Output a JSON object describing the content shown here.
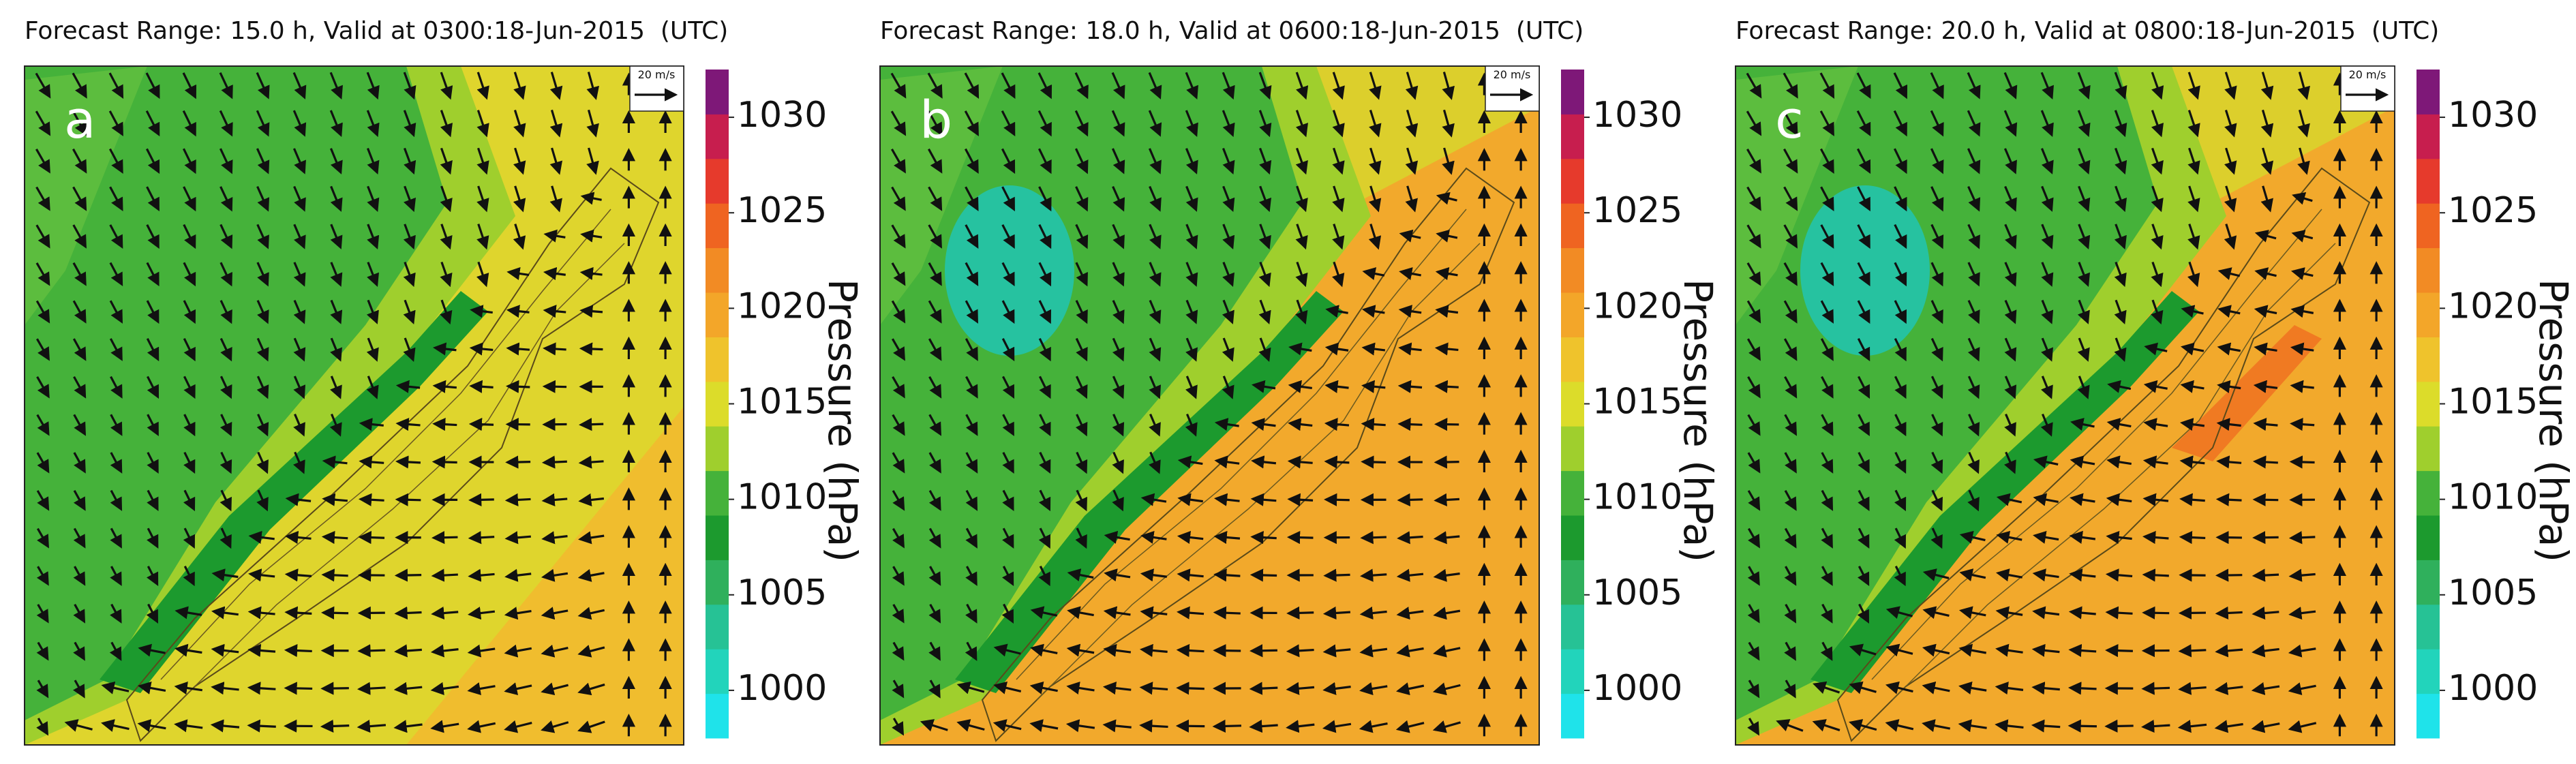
{
  "panels": [
    {
      "title": "Forecast Range: 15.0 h, Valid at 0300:18-Jun-2015  (UTC)",
      "label": "a",
      "vector_key": "20 m/s",
      "colorbar": {
        "label": "Pressure (hPa)",
        "range": [
          997.5,
          1032.5
        ],
        "ticks": [
          1000,
          1005,
          1010,
          1015,
          1020,
          1025,
          1030
        ],
        "colors": [
          "#1fe3ea",
          "#22d4bb",
          "#26c295",
          "#2fb05c",
          "#1c9a2e",
          "#45b23a",
          "#9fcf2d",
          "#dcdc2a",
          "#efc32c",
          "#f3a629",
          "#f28b24",
          "#ef6421",
          "#e63a2c",
          "#c71e4e",
          "#7e1878"
        ]
      }
    },
    {
      "title": "Forecast Range: 18.0 h, Valid at 0600:18-Jun-2015  (UTC)",
      "label": "b",
      "vector_key": "20 m/s",
      "colorbar": {
        "label": "Pressure (hPa)",
        "range": [
          997.5,
          1032.5
        ],
        "ticks": [
          1000,
          1005,
          1010,
          1015,
          1020,
          1025,
          1030
        ],
        "colors": [
          "#1fe3ea",
          "#22d4bb",
          "#26c295",
          "#2fb05c",
          "#1c9a2e",
          "#45b23a",
          "#9fcf2d",
          "#dcdc2a",
          "#efc32c",
          "#f3a629",
          "#f28b24",
          "#ef6421",
          "#e63a2c",
          "#c71e4e",
          "#7e1878"
        ]
      }
    },
    {
      "title": "Forecast Range: 20.0 h, Valid at 0800:18-Jun-2015  (UTC)",
      "label": "c",
      "vector_key": "20 m/s",
      "colorbar": {
        "label": "Pressure (hPa)",
        "range": [
          997.5,
          1032.5
        ],
        "ticks": [
          1000,
          1005,
          1010,
          1015,
          1020,
          1025,
          1030
        ],
        "colors": [
          "#1fe3ea",
          "#22d4bb",
          "#26c295",
          "#2fb05c",
          "#1c9a2e",
          "#45b23a",
          "#9fcf2d",
          "#dcdc2a",
          "#efc32c",
          "#f3a629",
          "#f28b24",
          "#ef6421",
          "#e63a2c",
          "#c71e4e",
          "#7e1878"
        ]
      }
    }
  ]
}
